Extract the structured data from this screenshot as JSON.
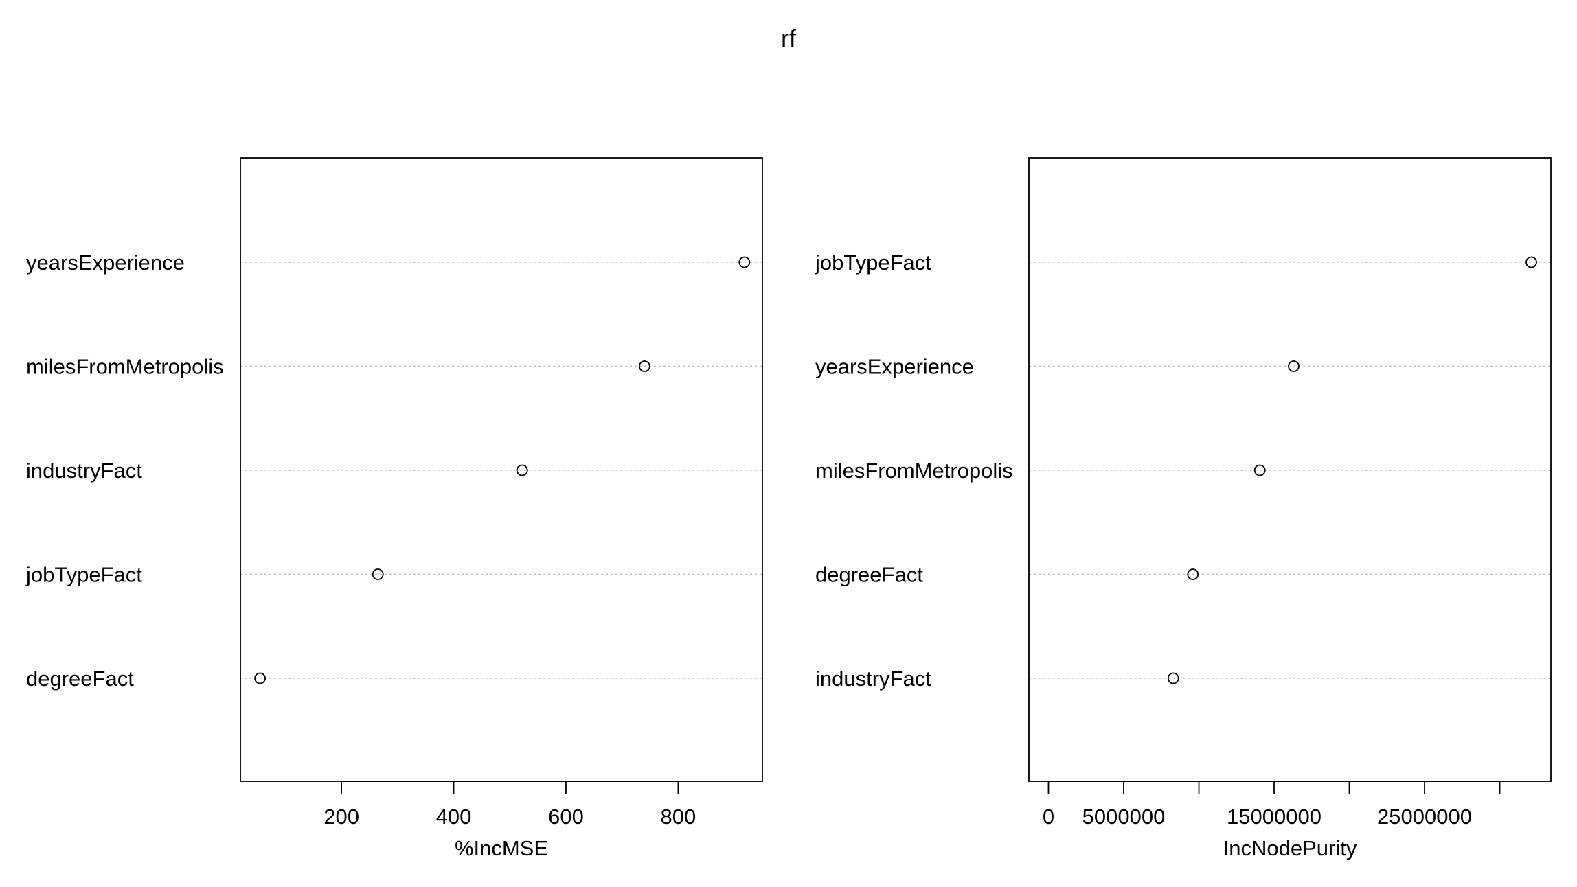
{
  "title": "rf",
  "chart_data": [
    {
      "type": "scatter",
      "subtype": "dotchart",
      "xlabel": "%IncMSE",
      "xlim": [
        20,
        950
      ],
      "ticks": [
        200,
        400,
        600,
        800
      ],
      "tick_labels": [
        "200",
        "400",
        "600",
        "800"
      ],
      "categories": [
        "yearsExperience",
        "milesFromMetropolis",
        "industryFact",
        "jobTypeFact",
        "degreeFact"
      ],
      "values": [
        918,
        740,
        522,
        265,
        55
      ],
      "grid": "dotted-horizontal"
    },
    {
      "type": "scatter",
      "subtype": "dotchart",
      "xlabel": "IncNodePurity",
      "xlim": [
        -1300000,
        33400000
      ],
      "ticks": [
        0,
        5000000,
        10000000,
        15000000,
        20000000,
        25000000,
        30000000
      ],
      "tick_labels": [
        "0",
        "5000000",
        "",
        "15000000",
        "",
        "25000000",
        ""
      ],
      "categories": [
        "jobTypeFact",
        "yearsExperience",
        "milesFromMetropolis",
        "degreeFact",
        "industryFact"
      ],
      "values": [
        32100000,
        16300000,
        14050000,
        9600000,
        8300000
      ],
      "grid": "dotted-horizontal"
    }
  ]
}
